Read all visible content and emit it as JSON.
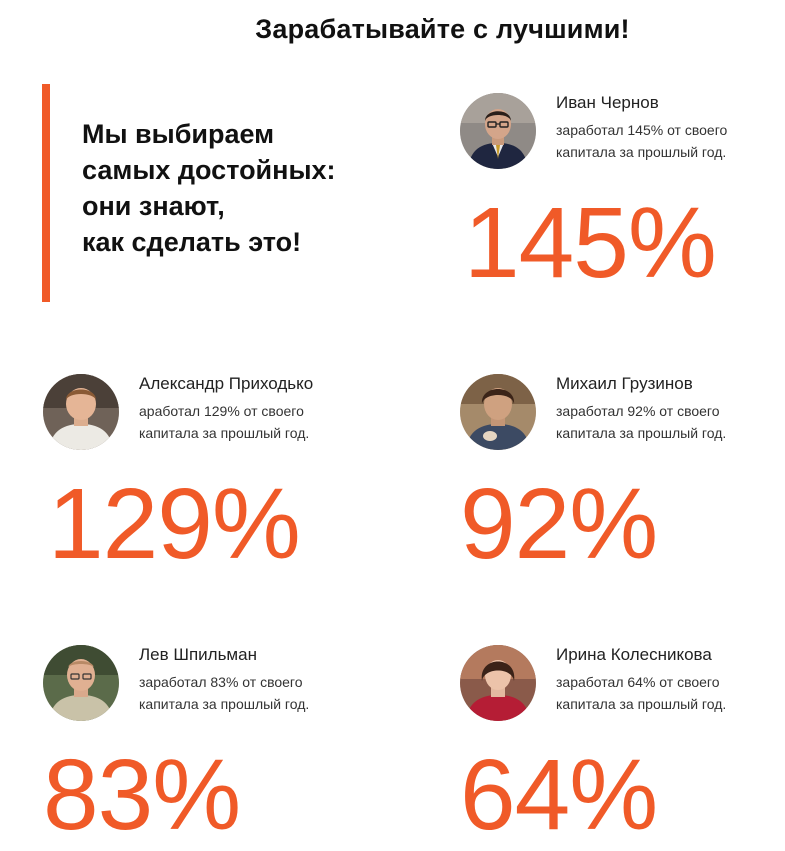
{
  "header": {
    "title": "Зарабатывайте с лучшими!"
  },
  "quote": {
    "lines": [
      "Мы выбираем",
      "самых достойных:",
      "они знают,",
      "как сделать это!"
    ]
  },
  "colors": {
    "accent": "#f05a28"
  },
  "traders": [
    {
      "name": "Иван Чернов",
      "desc_lines": [
        "заработал 145% от своего",
        "капитала за прошлый год."
      ],
      "percent": "145%",
      "avatar_icon": "person-photo-icon"
    },
    {
      "name": "Александр Приходько",
      "desc_lines": [
        "аработал 129% от своего",
        "капитала за прошлый год."
      ],
      "percent": "129%",
      "avatar_icon": "person-photo-icon"
    },
    {
      "name": "Михаил Грузинов",
      "desc_lines": [
        "заработал 92% от своего",
        "капитала за прошлый год."
      ],
      "percent": "92%",
      "avatar_icon": "person-photo-icon"
    },
    {
      "name": "Лев Шпильман",
      "desc_lines": [
        "заработал 83% от своего",
        "капитала за прошлый год."
      ],
      "percent": "83%",
      "avatar_icon": "person-photo-icon"
    },
    {
      "name": "Ирина Колесникова",
      "desc_lines": [
        "заработал 64% от своего",
        "капитала за прошлый год."
      ],
      "percent": "64%",
      "avatar_icon": "person-photo-icon"
    }
  ]
}
